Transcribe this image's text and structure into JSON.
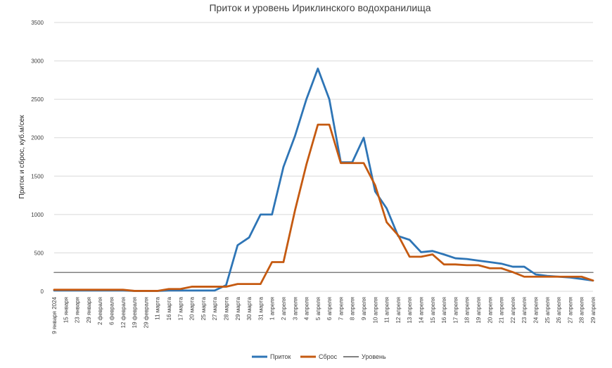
{
  "chart_data": {
    "type": "line",
    "title": "Приток и уровень Ириклинского водохранилища",
    "xlabel": "",
    "ylabel": "Приток и сброс, куб.м/сек",
    "ylim": [
      0,
      3500
    ],
    "yticks": [
      0,
      500,
      1000,
      1500,
      2000,
      2500,
      3000,
      3500
    ],
    "grid": true,
    "legend": "bottom",
    "categories": [
      "9 января 2024",
      "15 января",
      "23 января",
      "29 января",
      "2 февраля",
      "6 февраля",
      "12 февраля",
      "19 февраля",
      "29 февраля",
      "11 марта",
      "16 марта",
      "17 марта",
      "20 марта",
      "25 марта",
      "27 марта",
      "28 марта",
      "29 марта",
      "30 марта",
      "31 марта",
      "1 апреля",
      "2 апреля",
      "3 апреля",
      "4 апреля",
      "5 апреля",
      "6 апреля",
      "7 апреля",
      "8 апреля",
      "9 апреля",
      "10 апреля",
      "11 апреля",
      "12 апреля",
      "13 апреля",
      "14 апреля",
      "15 апреля",
      "16 апреля",
      "17 апреля",
      "18 апреля",
      "19 апреля",
      "20 апреля",
      "21 апреля",
      "22 апреля",
      "23 апреля",
      "24 апреля",
      "25 апреля",
      "26 апреля",
      "27 апреля",
      "28 апреля",
      "29 апреля"
    ],
    "series": [
      {
        "name": "Приток",
        "color": "#2E75B6",
        "values": [
          10,
          10,
          10,
          10,
          10,
          10,
          10,
          5,
          5,
          5,
          10,
          10,
          10,
          10,
          10,
          80,
          600,
          700,
          1000,
          1000,
          1620,
          2020,
          2500,
          2900,
          2500,
          1680,
          1680,
          2000,
          1300,
          1080,
          720,
          670,
          510,
          525,
          480,
          430,
          420,
          400,
          380,
          360,
          320,
          320,
          220,
          200,
          190,
          180,
          160,
          140
        ]
      },
      {
        "name": "Сброс",
        "color": "#C55A11",
        "values": [
          20,
          20,
          20,
          20,
          20,
          20,
          20,
          5,
          5,
          5,
          30,
          30,
          60,
          60,
          60,
          60,
          95,
          95,
          95,
          380,
          380,
          1050,
          1650,
          2170,
          2170,
          1670,
          1670,
          1670,
          1380,
          900,
          730,
          450,
          450,
          480,
          350,
          350,
          340,
          340,
          300,
          300,
          250,
          190,
          190,
          190,
          190,
          190,
          190,
          140
        ]
      },
      {
        "name": "Уровень",
        "color": "#808080",
        "values": [
          245,
          245,
          245,
          245,
          245,
          245,
          245,
          245,
          245,
          245,
          245,
          245,
          245,
          245,
          245,
          245,
          245,
          245,
          245,
          245,
          245,
          245,
          245,
          245,
          245,
          245,
          245,
          245,
          245,
          245,
          245,
          245,
          245,
          245,
          245,
          245,
          245,
          245,
          245,
          245,
          245,
          245,
          245,
          245,
          245,
          245,
          245,
          245
        ]
      }
    ]
  }
}
